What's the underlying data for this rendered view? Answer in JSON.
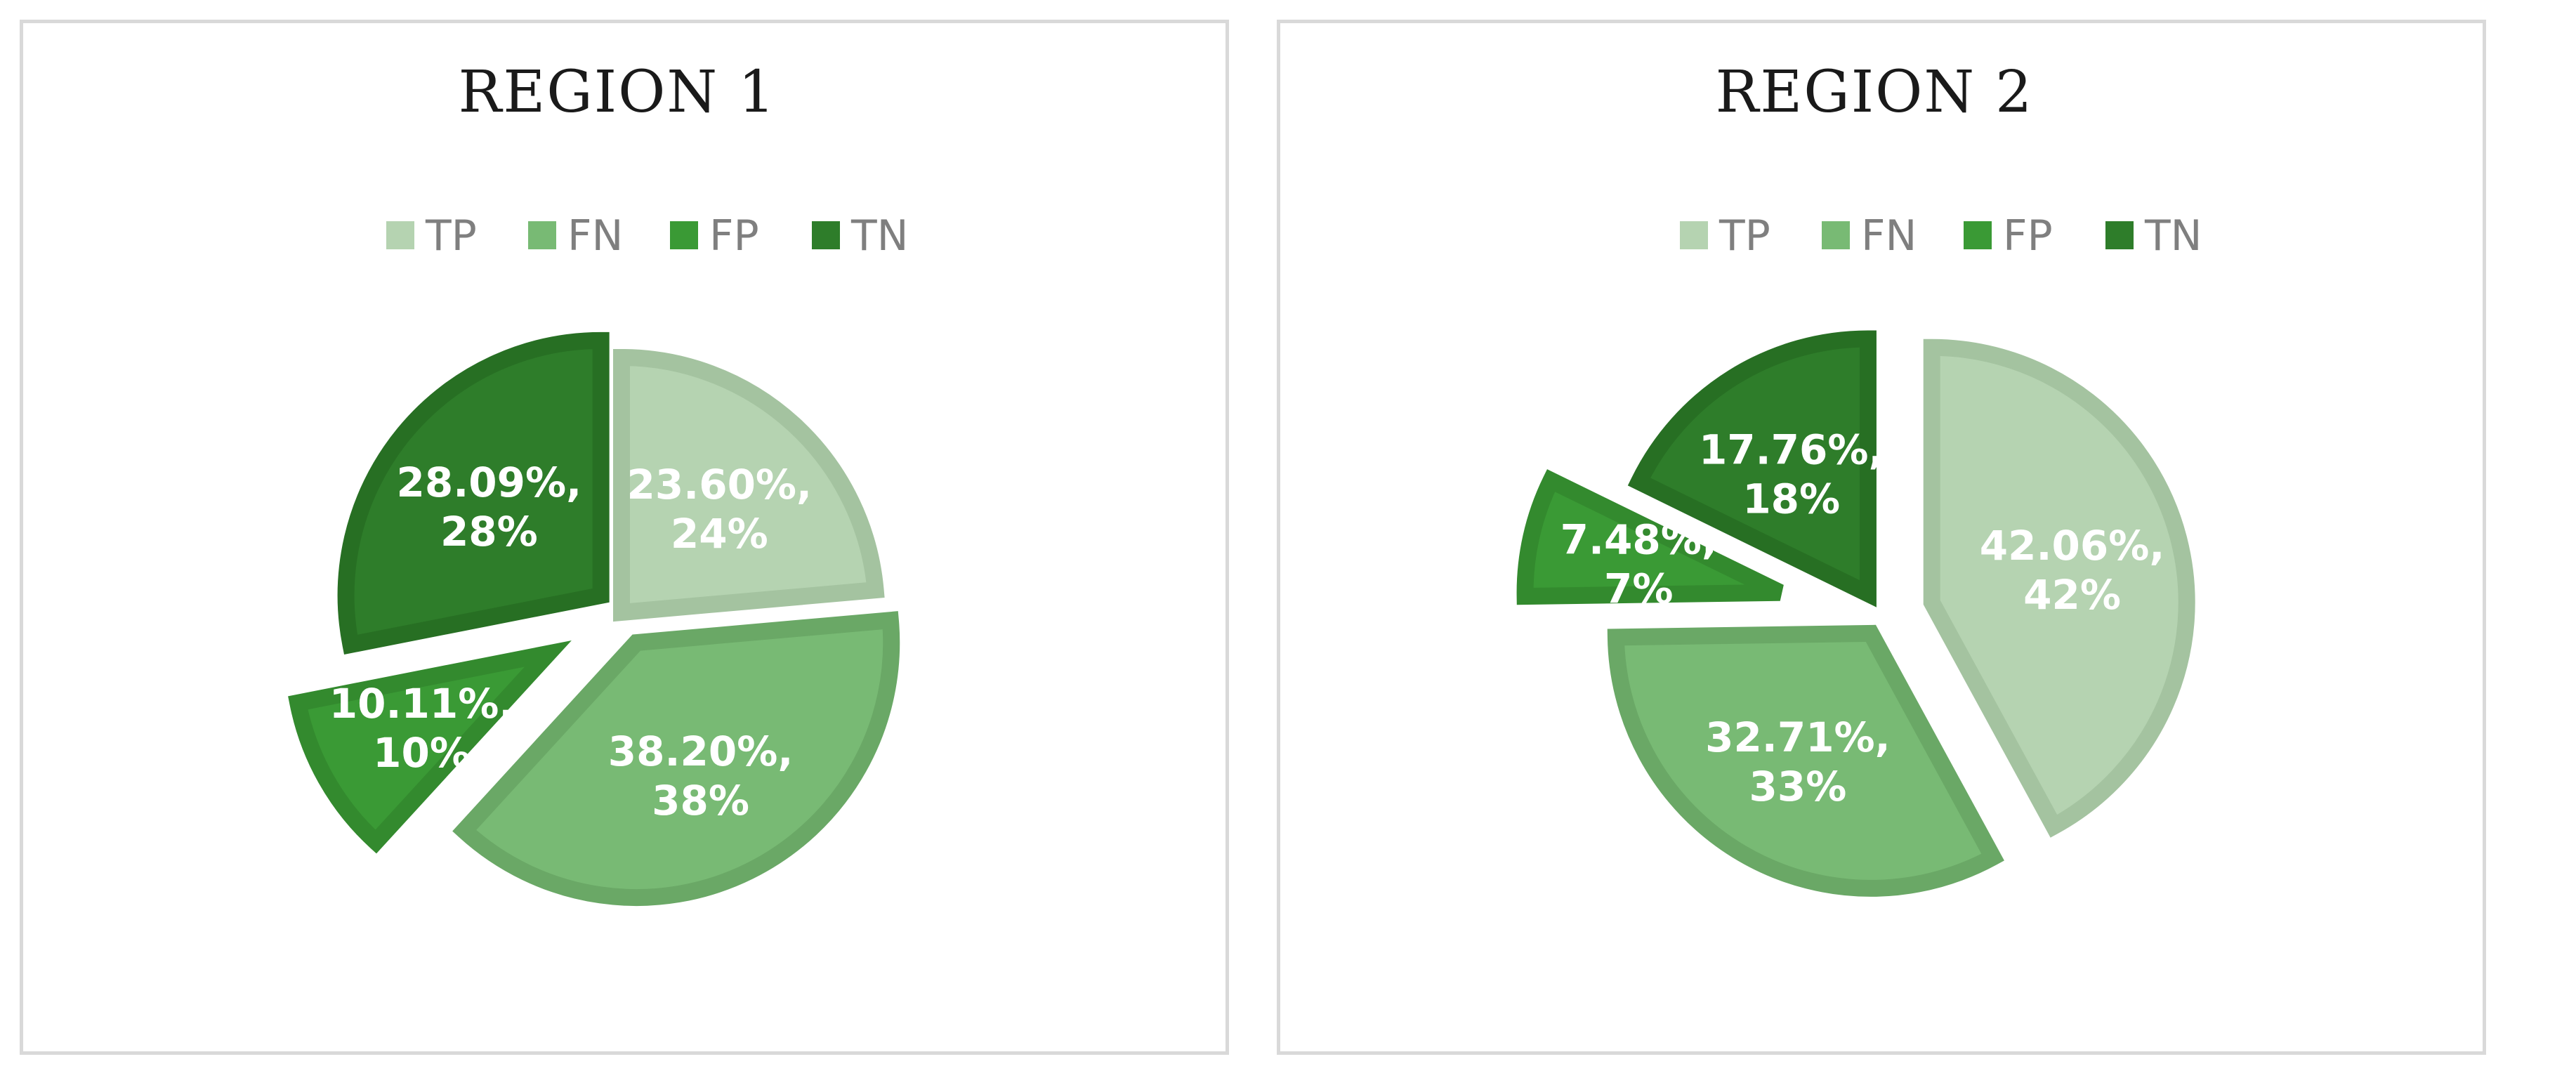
{
  "chart_data": [
    {
      "type": "pie",
      "title": "REGION 1",
      "legend_position": "top",
      "exploded": true,
      "categories": [
        "TP",
        "FN",
        "FP",
        "TN"
      ],
      "values": [
        23.6,
        38.2,
        10.11,
        28.09
      ],
      "data_labels": [
        [
          "23.60%,",
          "24%"
        ],
        [
          "38.20%,",
          "38%"
        ],
        [
          "10.11%,",
          "10%"
        ],
        [
          "28.09%,",
          "28%"
        ]
      ],
      "colors": [
        "#b5d3b1",
        "#78ba74",
        "#3a9a35",
        "#2e7d2a"
      ],
      "border_colors": [
        "#a4c3a0",
        "#6aa866",
        "#338a2e",
        "#276f23"
      ]
    },
    {
      "type": "pie",
      "title": "REGION 2",
      "legend_position": "top",
      "exploded": true,
      "categories": [
        "TP",
        "FN",
        "FP",
        "TN"
      ],
      "values": [
        42.06,
        32.71,
        7.48,
        17.76
      ],
      "data_labels": [
        [
          "42.06%,",
          "42%"
        ],
        [
          "32.71%,",
          "33%"
        ],
        [
          "7.48%,",
          "7%"
        ],
        [
          "17.76%,",
          "18%"
        ]
      ],
      "colors": [
        "#b5d3b1",
        "#78ba74",
        "#3a9a35",
        "#2e7d2a"
      ],
      "border_colors": [
        "#a4c3a0",
        "#6aa866",
        "#338a2e",
        "#276f23"
      ]
    }
  ]
}
